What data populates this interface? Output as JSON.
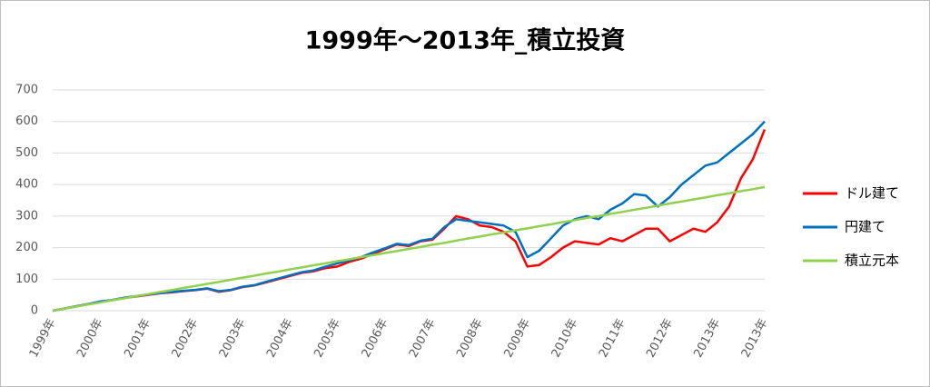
{
  "chart_data": {
    "type": "line",
    "title": "1999年～2013年_積立投資",
    "categories": [
      "1999年",
      null,
      null,
      null,
      "2000年",
      null,
      null,
      null,
      "2001年",
      null,
      null,
      null,
      "2002年",
      null,
      null,
      null,
      "2003年",
      null,
      null,
      null,
      "2004年",
      null,
      null,
      null,
      "2005年",
      null,
      null,
      null,
      "2006年",
      null,
      null,
      null,
      "2007年",
      null,
      null,
      null,
      "2008年",
      null,
      null,
      null,
      "2009年",
      null,
      null,
      null,
      "2010年",
      null,
      null,
      null,
      "2011年",
      null,
      null,
      null,
      "2012年",
      null,
      null,
      null,
      "2013年",
      null,
      null,
      null,
      "2013年"
    ],
    "series": [
      {
        "name": "ドル建て",
        "color": "#ff0000",
        "values": [
          0,
          7,
          14,
          21,
          28,
          33,
          40,
          45,
          50,
          55,
          58,
          62,
          65,
          70,
          60,
          65,
          75,
          80,
          90,
          100,
          110,
          120,
          125,
          135,
          140,
          155,
          165,
          180,
          195,
          210,
          205,
          220,
          225,
          260,
          300,
          290,
          270,
          265,
          250,
          220,
          140,
          145,
          170,
          200,
          220,
          215,
          210,
          230,
          220,
          240,
          260,
          260,
          220,
          240,
          260,
          250,
          280,
          330,
          420,
          480,
          575
        ]
      },
      {
        "name": "円建て",
        "color": "#0070c0",
        "values": [
          0,
          7,
          14,
          21,
          29,
          34,
          41,
          46,
          51,
          56,
          59,
          63,
          66,
          71,
          62,
          66,
          76,
          81,
          92,
          102,
          112,
          122,
          128,
          140,
          150,
          160,
          170,
          185,
          198,
          212,
          208,
          222,
          228,
          265,
          290,
          285,
          280,
          275,
          270,
          250,
          170,
          190,
          230,
          270,
          290,
          300,
          290,
          320,
          340,
          370,
          365,
          330,
          360,
          400,
          430,
          460,
          470,
          500,
          530,
          560,
          600
        ]
      },
      {
        "name": "積立元本",
        "color": "#92d050",
        "values": [
          0,
          7,
          13,
          20,
          26,
          33,
          39,
          46,
          52,
          59,
          65,
          72,
          78,
          85,
          91,
          98,
          105,
          111,
          118,
          124,
          131,
          137,
          144,
          150,
          157,
          163,
          170,
          176,
          183,
          189,
          196,
          202,
          209,
          215,
          222,
          229,
          235,
          242,
          248,
          255,
          261,
          268,
          274,
          281,
          287,
          294,
          300,
          307,
          313,
          320,
          326,
          333,
          340,
          346,
          353,
          359,
          366,
          372,
          379,
          385,
          392
        ]
      }
    ],
    "ylim": [
      0,
      700
    ],
    "yticks": [
      0,
      100,
      200,
      300,
      400,
      500,
      600,
      700
    ],
    "grid": true,
    "legend": "right"
  }
}
